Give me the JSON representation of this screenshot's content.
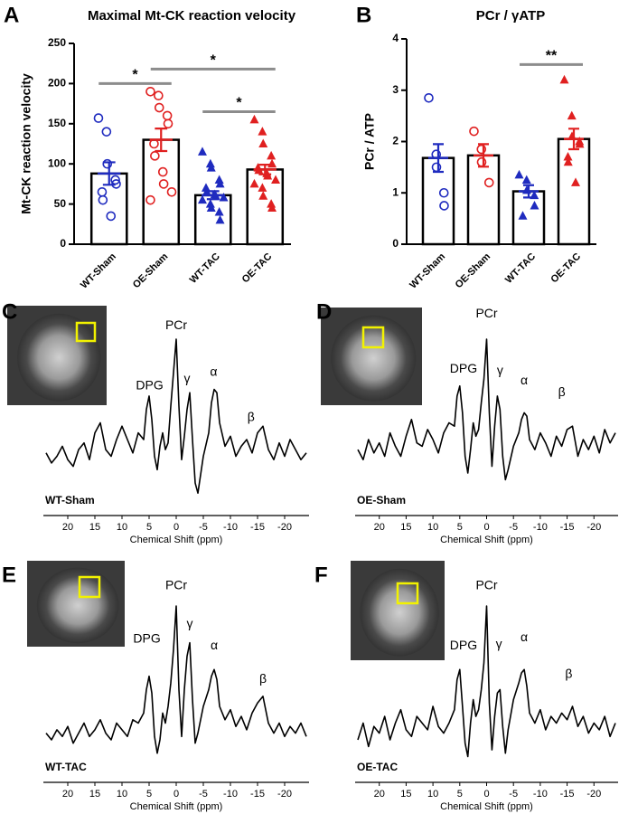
{
  "chart_data": [
    {
      "type": "bar",
      "panel": "A",
      "title": "Maximal Mt-CK reaction velocity",
      "ylabel": "Mt-CK reaction velocity",
      "categories": [
        "WT-Sham",
        "OE-Sham",
        "WT-TAC",
        "OE-TAC"
      ],
      "values": [
        88,
        130,
        61,
        93
      ],
      "errors": [
        14,
        14,
        5,
        6
      ],
      "colors": [
        "#1f2bbf",
        "#e02020",
        "#1f2bbf",
        "#e02020"
      ],
      "markers": [
        "circle-open",
        "circle-open",
        "triangle",
        "triangle"
      ],
      "points": [
        [
          157,
          140,
          100,
          80,
          75,
          65,
          55,
          35
        ],
        [
          190,
          185,
          170,
          160,
          150,
          125,
          110,
          90,
          75,
          65,
          55
        ],
        [
          115,
          100,
          95,
          80,
          75,
          70,
          65,
          62,
          60,
          58,
          55,
          50,
          45,
          40,
          30
        ],
        [
          155,
          140,
          125,
          110,
          100,
          95,
          92,
          88,
          85,
          80,
          75,
          70,
          60,
          50,
          45
        ]
      ],
      "ylim": [
        0,
        250
      ],
      "yticks": [
        0,
        50,
        100,
        150,
        200,
        250
      ],
      "significance": [
        {
          "groups": [
            "WT-Sham",
            "OE-Sham"
          ],
          "y": 200,
          "label": "*"
        },
        {
          "groups": [
            "OE-Sham",
            "OE-TAC"
          ],
          "y": 218,
          "label": "*"
        },
        {
          "groups": [
            "WT-TAC",
            "OE-TAC"
          ],
          "y": 165,
          "label": "*"
        }
      ]
    },
    {
      "type": "bar",
      "panel": "B",
      "title": "PCr / γATP",
      "ylabel": "PCr / ATP",
      "categories": [
        "WT-Sham",
        "OE-Sham",
        "WT-TAC",
        "OE-TAC"
      ],
      "values": [
        1.68,
        1.73,
        1.03,
        2.05
      ],
      "errors": [
        0.27,
        0.22,
        0.12,
        0.2
      ],
      "colors": [
        "#1f2bbf",
        "#e02020",
        "#1f2bbf",
        "#e02020"
      ],
      "markers": [
        "circle-open",
        "circle-open",
        "triangle",
        "triangle"
      ],
      "points": [
        [
          2.85,
          1.75,
          1.5,
          1.0,
          0.75
        ],
        [
          2.2,
          1.85,
          1.6,
          1.2
        ],
        [
          1.35,
          1.25,
          1.05,
          0.95,
          0.75,
          0.55
        ],
        [
          3.2,
          2.5,
          2.1,
          2.0,
          1.95,
          1.7,
          1.6,
          1.2
        ]
      ],
      "ylim": [
        0,
        4
      ],
      "yticks": [
        0,
        1,
        2,
        3,
        4
      ],
      "significance": [
        {
          "groups": [
            "WT-TAC",
            "OE-TAC"
          ],
          "y": 3.5,
          "label": "**"
        }
      ]
    },
    {
      "type": "line",
      "panel": "C",
      "label": "WT-Sham",
      "xlabel": "Chemical Shift (ppm)",
      "line_color": "#000000",
      "x": [
        24,
        23,
        22,
        21,
        20,
        19,
        18,
        17,
        16,
        15,
        14,
        13,
        12,
        11,
        10,
        9,
        8,
        7,
        6,
        5.5,
        5,
        4.5,
        4,
        3.5,
        3,
        2.5,
        2,
        1.5,
        1,
        0.5,
        0,
        -0.5,
        -1,
        -1.5,
        -2,
        -2.5,
        -3,
        -3.5,
        -4,
        -5,
        -6,
        -6.5,
        -7,
        -7.5,
        -8,
        -9,
        -10,
        -11,
        -12,
        -13,
        -14,
        -15,
        -16,
        -17,
        -18,
        -19,
        -20,
        -21,
        -22,
        -23,
        -24
      ],
      "values": [
        32,
        26,
        30,
        36,
        28,
        24,
        34,
        38,
        28,
        44,
        50,
        34,
        30,
        40,
        48,
        40,
        32,
        44,
        40,
        58,
        66,
        52,
        30,
        22,
        36,
        44,
        34,
        38,
        60,
        80,
        100,
        60,
        28,
        42,
        58,
        68,
        40,
        14,
        8,
        30,
        44,
        62,
        70,
        68,
        50,
        36,
        42,
        30,
        36,
        40,
        32,
        44,
        48,
        34,
        28,
        38,
        30,
        40,
        34,
        28,
        32
      ],
      "xlim": [
        24.5,
        -24.5
      ],
      "xticks": [
        20,
        15,
        10,
        5,
        0,
        -5,
        -10,
        -15,
        -20
      ],
      "ylim": [
        0,
        100
      ],
      "annotations": [
        {
          "text": "PCr",
          "x": 0,
          "y": 108
        },
        {
          "text": "DPG",
          "x": 4.9,
          "y": 72
        },
        {
          "text": "γ",
          "x": -2,
          "y": 76
        },
        {
          "text": "α",
          "x": -6.9,
          "y": 80
        },
        {
          "text": "β",
          "x": -13.8,
          "y": 53
        }
      ]
    },
    {
      "type": "line",
      "panel": "D",
      "label": "OE-Sham",
      "xlabel": "Chemical Shift (ppm)",
      "line_color": "#000000",
      "x": [
        24,
        23,
        22,
        21,
        20,
        19,
        18,
        17,
        16,
        15,
        14,
        13,
        12,
        11,
        10,
        9,
        8,
        7,
        6,
        5.5,
        5,
        4.5,
        4,
        3.5,
        3,
        2.5,
        2,
        1.5,
        1,
        0.5,
        0,
        -0.5,
        -1,
        -1.5,
        -2,
        -2.5,
        -3,
        -3.5,
        -4,
        -5,
        -6,
        -6.5,
        -7,
        -7.5,
        -8,
        -9,
        -10,
        -11,
        -12,
        -13,
        -14,
        -15,
        -16,
        -17,
        -18,
        -19,
        -20,
        -21,
        -22,
        -23,
        -24
      ],
      "values": [
        34,
        28,
        40,
        32,
        38,
        30,
        44,
        36,
        30,
        42,
        52,
        38,
        36,
        46,
        40,
        32,
        44,
        50,
        48,
        66,
        72,
        56,
        30,
        20,
        34,
        50,
        42,
        46,
        62,
        76,
        100,
        56,
        24,
        48,
        66,
        58,
        30,
        16,
        22,
        36,
        44,
        52,
        56,
        54,
        40,
        34,
        44,
        38,
        30,
        42,
        36,
        46,
        48,
        30,
        40,
        34,
        42,
        32,
        46,
        38,
        44
      ],
      "xlim": [
        24.5,
        -24.5
      ],
      "xticks": [
        20,
        15,
        10,
        5,
        0,
        -5,
        -10,
        -15,
        -20
      ],
      "ylim": [
        0,
        100
      ],
      "annotations": [
        {
          "text": "PCr",
          "x": 0,
          "y": 115
        },
        {
          "text": "DPG",
          "x": 4.3,
          "y": 82
        },
        {
          "text": "γ",
          "x": -2.5,
          "y": 81
        },
        {
          "text": "α",
          "x": -7,
          "y": 75
        },
        {
          "text": "β",
          "x": -14,
          "y": 68
        }
      ]
    },
    {
      "type": "line",
      "panel": "E",
      "label": "WT-TAC",
      "xlabel": "Chemical Shift (ppm)",
      "line_color": "#000000",
      "x": [
        24,
        23,
        22,
        21,
        20,
        19,
        18,
        17,
        16,
        15,
        14,
        13,
        12,
        11,
        10,
        9,
        8,
        7,
        6,
        5.5,
        5,
        4.5,
        4,
        3.5,
        3,
        2.5,
        2,
        1.5,
        1,
        0.5,
        0,
        -0.5,
        -1,
        -1.5,
        -2,
        -2.5,
        -3,
        -3.5,
        -4,
        -5,
        -6,
        -6.5,
        -7,
        -7.5,
        -8,
        -9,
        -10,
        -11,
        -12,
        -13,
        -14,
        -15,
        -16,
        -17,
        -18,
        -19,
        -20,
        -21,
        -22,
        -23,
        -24
      ],
      "values": [
        24,
        20,
        26,
        22,
        28,
        18,
        24,
        30,
        22,
        26,
        32,
        24,
        20,
        30,
        26,
        22,
        32,
        30,
        36,
        50,
        58,
        48,
        22,
        12,
        20,
        36,
        30,
        40,
        54,
        74,
        100,
        50,
        22,
        50,
        70,
        78,
        44,
        18,
        24,
        40,
        50,
        58,
        62,
        56,
        40,
        32,
        38,
        28,
        34,
        26,
        36,
        42,
        46,
        30,
        24,
        30,
        22,
        28,
        24,
        30,
        22
      ],
      "xlim": [
        24.5,
        -24.5
      ],
      "xticks": [
        20,
        15,
        10,
        5,
        0,
        -5,
        -10,
        -15,
        -20
      ],
      "ylim": [
        0,
        100
      ],
      "annotations": [
        {
          "text": "PCr",
          "x": 0,
          "y": 112
        },
        {
          "text": "DPG",
          "x": 5.4,
          "y": 80
        },
        {
          "text": "γ",
          "x": -2.5,
          "y": 89
        },
        {
          "text": "α",
          "x": -7,
          "y": 76
        },
        {
          "text": "β",
          "x": -16,
          "y": 56
        }
      ]
    },
    {
      "type": "line",
      "panel": "F",
      "label": "OE-TAC",
      "xlabel": "Chemical Shift (ppm)",
      "line_color": "#000000",
      "x": [
        24,
        23,
        22,
        21,
        20,
        19,
        18,
        17,
        16,
        15,
        14,
        13,
        12,
        11,
        10,
        9,
        8,
        7,
        6,
        5.5,
        5,
        4.5,
        4,
        3.5,
        3,
        2.5,
        2,
        1.5,
        1,
        0.5,
        0,
        -0.5,
        -1,
        -1.5,
        -2,
        -2.5,
        -3,
        -3.5,
        -4,
        -5,
        -6,
        -6.5,
        -7,
        -7.5,
        -8,
        -9,
        -10,
        -11,
        -12,
        -13,
        -14,
        -15,
        -16,
        -17,
        -18,
        -19,
        -20,
        -21,
        -22,
        -23,
        -24
      ],
      "values": [
        20,
        30,
        16,
        28,
        24,
        34,
        20,
        30,
        38,
        26,
        22,
        34,
        30,
        26,
        40,
        28,
        24,
        30,
        38,
        56,
        62,
        40,
        18,
        10,
        30,
        44,
        34,
        38,
        50,
        66,
        100,
        42,
        14,
        34,
        48,
        50,
        28,
        12,
        26,
        44,
        54,
        60,
        62,
        52,
        36,
        30,
        38,
        26,
        34,
        30,
        36,
        32,
        40,
        28,
        34,
        24,
        30,
        26,
        34,
        22,
        30
      ],
      "xlim": [
        24.5,
        -24.5
      ],
      "xticks": [
        20,
        15,
        10,
        5,
        0,
        -5,
        -10,
        -15,
        -20
      ],
      "ylim": [
        0,
        100
      ],
      "annotations": [
        {
          "text": "PCr",
          "x": 0,
          "y": 112
        },
        {
          "text": "DPG",
          "x": 4.3,
          "y": 76
        },
        {
          "text": "γ",
          "x": -2.3,
          "y": 77
        },
        {
          "text": "α",
          "x": -7,
          "y": 81
        },
        {
          "text": "β",
          "x": -15.3,
          "y": 59
        }
      ]
    }
  ]
}
